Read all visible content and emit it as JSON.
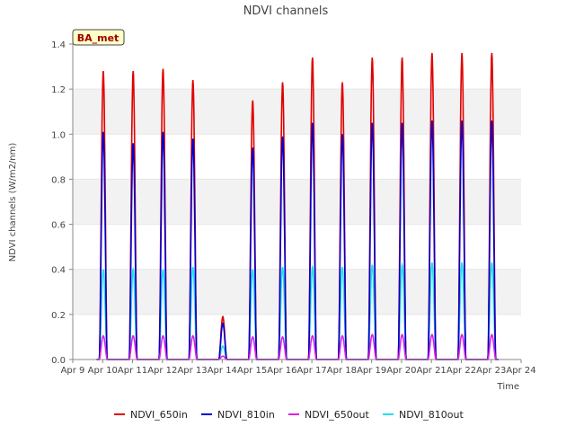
{
  "chart_data": {
    "type": "line",
    "title": "NDVI channels",
    "xlabel": "Time",
    "ylabel": "NDVI channels (W/m2/nm)",
    "ylim": [
      0,
      1.4
    ],
    "yticks": [
      "0.0",
      "0.2",
      "0.4",
      "0.6",
      "0.8",
      "1.0",
      "1.2",
      "1.4"
    ],
    "xlim": [
      9,
      24
    ],
    "xticks": [
      "Apr 9",
      "Apr 10",
      "Apr 11",
      "Apr 12",
      "Apr 13",
      "Apr 14",
      "Apr 15",
      "Apr 16",
      "Apr 17",
      "Apr 18",
      "Apr 19",
      "Apr 20",
      "Apr 21",
      "Apr 22",
      "Apr 23",
      "Apr 24"
    ],
    "annotation": "BA_met",
    "grid": "horizontal bands",
    "legend_position": "bottom",
    "days": [
      10,
      11,
      12,
      13,
      14,
      15,
      16,
      17,
      18,
      19,
      20,
      21,
      22,
      23
    ],
    "series": [
      {
        "name": "NDVI_650in",
        "color": "#e00000",
        "daily_peak": [
          1.28,
          1.28,
          1.29,
          1.24,
          0.19,
          1.15,
          1.23,
          1.34,
          1.23,
          1.34,
          1.34,
          1.36,
          1.36,
          1.36
        ]
      },
      {
        "name": "NDVI_810in",
        "color": "#0000d0",
        "daily_peak": [
          1.01,
          0.96,
          1.01,
          0.98,
          0.16,
          0.94,
          0.99,
          1.05,
          1.0,
          1.05,
          1.05,
          1.06,
          1.06,
          1.06
        ]
      },
      {
        "name": "NDVI_650out",
        "color": "#e020e0",
        "daily_peak": [
          0.105,
          0.105,
          0.105,
          0.105,
          0.015,
          0.1,
          0.1,
          0.105,
          0.105,
          0.11,
          0.11,
          0.11,
          0.11,
          0.11
        ]
      },
      {
        "name": "NDVI_810out",
        "color": "#20e0f0",
        "daily_peak": [
          0.4,
          0.4,
          0.4,
          0.41,
          0.06,
          0.4,
          0.41,
          0.41,
          0.41,
          0.42,
          0.42,
          0.43,
          0.43,
          0.43
        ]
      }
    ]
  }
}
